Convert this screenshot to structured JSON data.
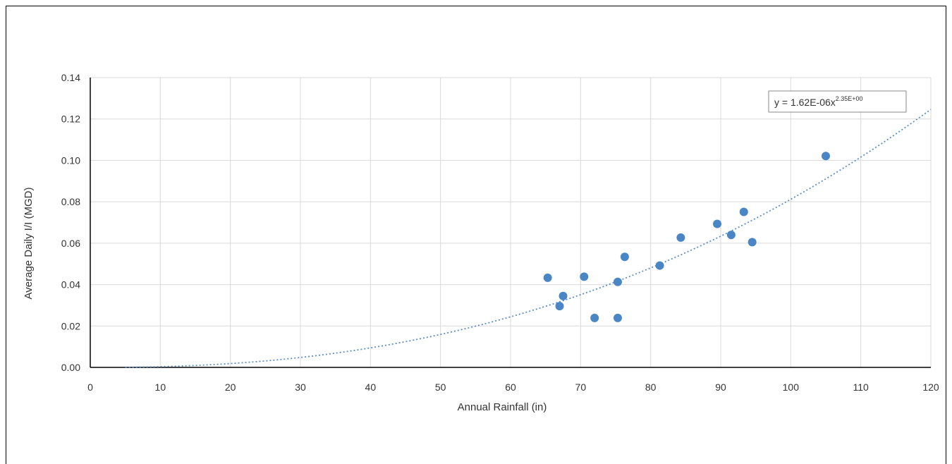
{
  "chart_data": {
    "type": "scatter",
    "xlabel": "Annual Rainfall (in)",
    "ylabel": "Average Daily I/I (MGD)",
    "xlim": [
      0,
      120
    ],
    "ylim": [
      0,
      0.14
    ],
    "x_ticks": [
      "0",
      "10",
      "20",
      "30",
      "40",
      "50",
      "60",
      "70",
      "80",
      "90",
      "100",
      "110",
      "120"
    ],
    "y_ticks": [
      "0.00",
      "0.02",
      "0.04",
      "0.06",
      "0.08",
      "0.10",
      "0.12",
      "0.14"
    ],
    "grid": true,
    "marker_color": "#4A86C5",
    "trendline_color": "#5B8EC9",
    "series": [
      {
        "points": [
          {
            "x": 65.3,
            "y": 0.0433
          },
          {
            "x": 67.0,
            "y": 0.0296
          },
          {
            "x": 67.5,
            "y": 0.0345
          },
          {
            "x": 70.5,
            "y": 0.0438
          },
          {
            "x": 72.0,
            "y": 0.0239
          },
          {
            "x": 75.3,
            "y": 0.0413
          },
          {
            "x": 75.3,
            "y": 0.0239
          },
          {
            "x": 76.3,
            "y": 0.0534
          },
          {
            "x": 81.3,
            "y": 0.0492
          },
          {
            "x": 84.3,
            "y": 0.0627
          },
          {
            "x": 89.5,
            "y": 0.0693
          },
          {
            "x": 91.5,
            "y": 0.064
          },
          {
            "x": 93.3,
            "y": 0.0751
          },
          {
            "x": 94.5,
            "y": 0.0605
          },
          {
            "x": 105.0,
            "y": 0.1021
          }
        ]
      }
    ],
    "trendline": {
      "type": "power",
      "a": 1.62e-06,
      "b": 2.35,
      "x_start": 5,
      "x_end": 120,
      "equation_main": "y = 1.62E-06x",
      "equation_exponent": "2.35E+00"
    }
  }
}
